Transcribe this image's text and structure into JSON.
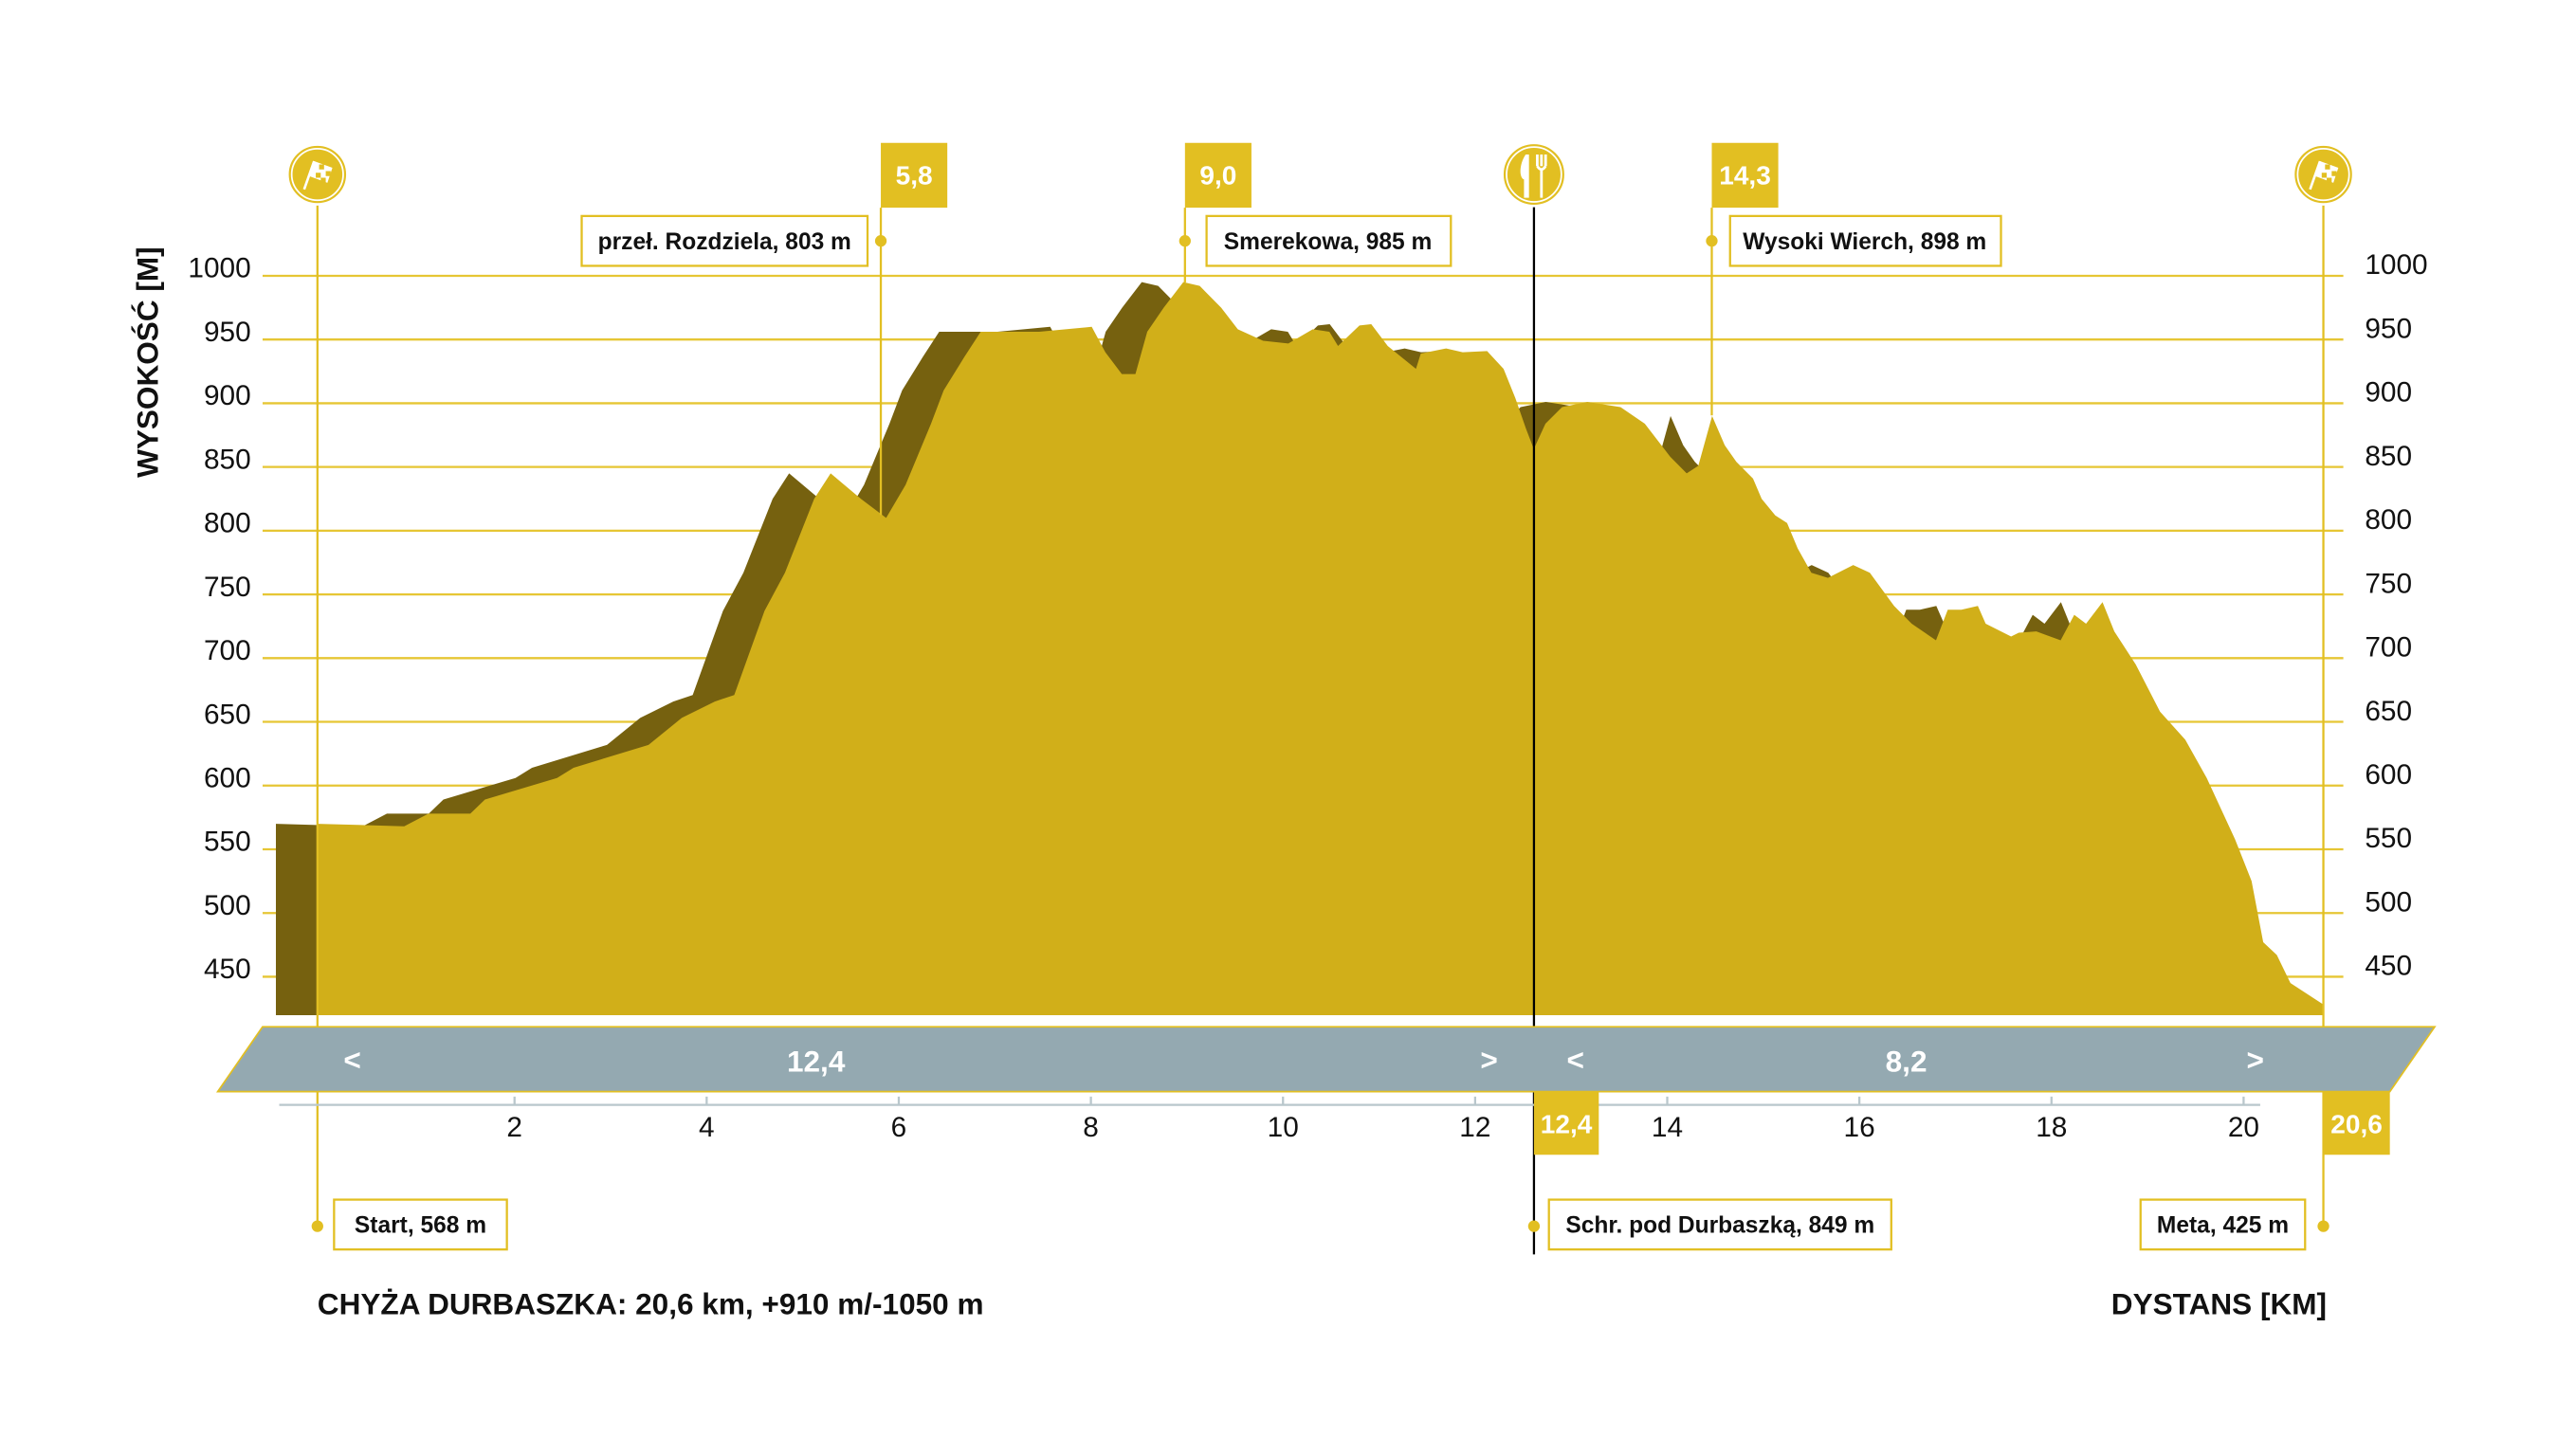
{
  "chart_data": {
    "type": "area",
    "title": "CHYŻA DURBASZKA: 20,6 km, +910 m/-1050 m",
    "xlabel": "DYSTANS [KM]",
    "ylabel": "WYSOKOŚĆ [M]",
    "xlim": [
      0,
      20.6
    ],
    "ylim": [
      421,
      1000
    ],
    "grid": true,
    "xticks": [
      "2",
      "4",
      "6",
      "8",
      "10",
      "12",
      "14",
      "16",
      "18",
      "20"
    ],
    "xtick_values": [
      2,
      4,
      6,
      8,
      10,
      12,
      14,
      16,
      18,
      20
    ],
    "yticks": [
      "1000",
      "950",
      "900",
      "850",
      "800",
      "750",
      "700",
      "650",
      "600",
      "550",
      "500",
      "450"
    ],
    "ytick_values": [
      1000,
      950,
      900,
      850,
      800,
      750,
      700,
      650,
      600,
      550,
      500,
      450
    ],
    "profile": {
      "km": [
        0,
        0.89,
        1.14,
        1.57,
        1.72,
        2.46,
        2.63,
        3.4,
        3.74,
        4.08,
        4.28,
        4.59,
        4.8,
        5.1,
        5.27,
        5.58,
        5.84,
        6.04,
        6.3,
        6.43,
        6.64,
        6.81,
        7.06,
        7.41,
        7.95,
        8.09,
        8.26,
        8.4,
        8.52,
        8.69,
        8.89,
        9.06,
        9.28,
        9.45,
        9.71,
        9.97,
        10.22,
        10.39,
        10.48,
        10.7,
        10.82,
        10.99,
        11.28,
        11.33,
        11.59,
        11.76,
        12.01,
        12.18,
        12.3,
        12.41,
        12.49,
        12.61,
        12.78,
        13.04,
        13.38,
        13.63,
        13.89,
        14.06,
        14.18,
        14.32,
        14.45,
        14.57,
        14.74,
        14.83,
        14.97,
        15.09,
        15.2,
        15.34,
        15.51,
        15.77,
        15.94,
        16.19,
        16.37,
        16.62,
        16.74,
        16.88,
        17.05,
        17.13,
        17.39,
        17.47,
        17.65,
        17.9,
        18.04,
        18.16,
        18.33,
        18.45,
        18.67,
        18.92,
        19.18,
        19.4,
        19.69,
        19.86,
        19.98,
        20.12,
        20.26,
        20.6
      ],
      "elevation_m": [
        570,
        568,
        578,
        578,
        589,
        606,
        614,
        632,
        653,
        666,
        671,
        737,
        767,
        825,
        845,
        825,
        810,
        836,
        884,
        910,
        936,
        956,
        956,
        956,
        960,
        940,
        923,
        923,
        956,
        975,
        995,
        992,
        975,
        958,
        949,
        947,
        958,
        956,
        945,
        961,
        962,
        945,
        927,
        939,
        943,
        940,
        941,
        927,
        904,
        880,
        864,
        884,
        897,
        901,
        897,
        884,
        858,
        845,
        851,
        890,
        867,
        854,
        841,
        825,
        812,
        806,
        786,
        767,
        763,
        773,
        767,
        741,
        727,
        714,
        738,
        738,
        741,
        727,
        717,
        720,
        721,
        714,
        734,
        727,
        744,
        721,
        695,
        658,
        636,
        606,
        558,
        525,
        477,
        467,
        445,
        428
      ]
    },
    "waypoints_top": [
      {
        "km": 0,
        "icon": "checkered-flag-icon"
      },
      {
        "km": 5.8,
        "badge": "5,8",
        "label": "przeł. Rozdziela, 803 m"
      },
      {
        "km": 9.0,
        "badge": "9,0",
        "label": "Smerekowa, 985 m"
      },
      {
        "km": 12.4,
        "icon": "fork-knife-icon"
      },
      {
        "km": 14.3,
        "badge": "14,3",
        "label": "Wysoki Wierch, 898 m"
      },
      {
        "km": 20.6,
        "icon": "checkered-flag-icon"
      }
    ],
    "waypoints_bottom": [
      {
        "label": "Start, 568 m"
      },
      {
        "label": "Schr. pod Durbaszką, 849 m",
        "badge": "12,4"
      },
      {
        "label": "Meta, 425 m",
        "badge": "20,6"
      }
    ],
    "segments": [
      {
        "left": "<",
        "value": "12,4",
        "right": ">"
      },
      {
        "left": "<",
        "value": "8,2",
        "right": ">"
      }
    ]
  },
  "colors": {
    "profile": "#d1af19",
    "shadow": "#76610f",
    "accent": "#e2bf22",
    "ribbon": "#94a9b1"
  }
}
